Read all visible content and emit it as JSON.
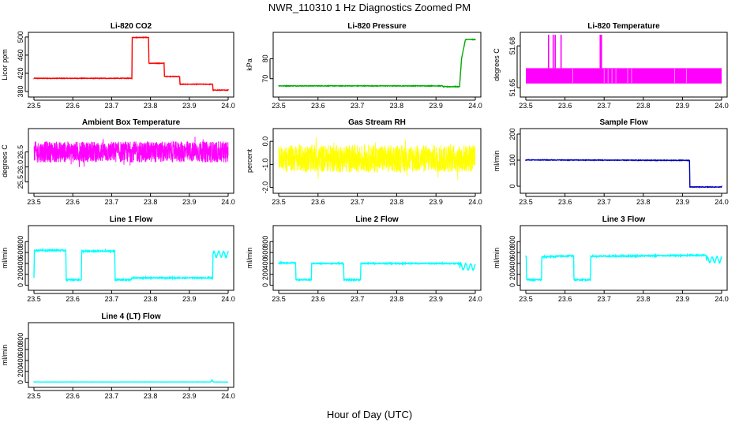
{
  "page": {
    "title": "NWR_110310  1 Hz Diagnostics Zoomed PM",
    "xlabel": "Hour of Day (UTC)"
  },
  "chart_data": [
    {
      "type": "line",
      "title": "Li-820 CO2",
      "ylabel": "Licor ppm",
      "color": "#ff0000",
      "xlim": [
        23.5,
        24.0
      ],
      "ylim": [
        373,
        505
      ],
      "x_ticks": [
        "23.5",
        "23.6",
        "23.7",
        "23.8",
        "23.9",
        "24.0"
      ],
      "y_ticks": [
        380,
        420,
        460,
        500
      ],
      "noise": 0.6,
      "series": [
        {
          "x": [
            23.5,
            23.752,
            23.753,
            23.795,
            23.796,
            23.835,
            23.836,
            23.875,
            23.876,
            23.96,
            23.961,
            24.0
          ],
          "y": [
            409,
            409,
            499,
            499,
            442,
            442,
            413,
            413,
            396,
            396,
            383,
            383
          ]
        }
      ]
    },
    {
      "type": "line",
      "title": "Li-820 Pressure",
      "ylabel": "kPa",
      "color": "#00aa00",
      "xlim": [
        23.5,
        24.0
      ],
      "ylim": [
        62,
        92
      ],
      "x_ticks": [
        "23.5",
        "23.6",
        "23.7",
        "23.8",
        "23.9",
        "24.0"
      ],
      "y_ticks": [
        70,
        80
      ],
      "noise": 0.15,
      "series": [
        {
          "x": [
            23.5,
            23.917,
            23.918,
            23.96,
            23.965,
            23.975,
            24.0
          ],
          "y": [
            66.4,
            66.4,
            66.0,
            66.0,
            80.0,
            89.6,
            89.6
          ]
        }
      ]
    },
    {
      "type": "line",
      "title": "Li-820 Temperature",
      "ylabel": "degrees C",
      "color": "#ff00ff",
      "xlim": [
        23.5,
        24.0
      ],
      "ylim": [
        51.645,
        51.688
      ],
      "x_ticks": [
        "23.5",
        "23.6",
        "23.7",
        "23.8",
        "23.9",
        "24.0"
      ],
      "y_ticks": [
        "51.65",
        "51.68"
      ],
      "band": [
        51.653,
        51.664
      ],
      "spikes": [
        23.558,
        23.57,
        23.575,
        23.59,
        23.69,
        23.693
      ],
      "spike_top": 51.688,
      "series": []
    },
    {
      "type": "line",
      "title": "Ambient Box Temperature",
      "ylabel": "degrees C",
      "color": "#ff00ff",
      "xlim": [
        23.5,
        24.0
      ],
      "ylim": [
        25.2,
        27.2
      ],
      "x_ticks": [
        "23.5",
        "23.6",
        "23.7",
        "23.8",
        "23.9",
        "24.0"
      ],
      "y_ticks": [
        "25.5",
        "26.0",
        "26.5"
      ],
      "noise_center": 26.5,
      "noise_amp": 0.35,
      "series": []
    },
    {
      "type": "line",
      "title": "Gas Stream RH",
      "ylabel": "percent",
      "color": "#ffff00",
      "xlim": [
        23.5,
        24.0
      ],
      "ylim": [
        -2.15,
        0.45
      ],
      "x_ticks": [
        "23.5",
        "23.6",
        "23.7",
        "23.8",
        "23.9",
        "24.0"
      ],
      "y_ticks": [
        "-2.0",
        "-1.0",
        "0.0"
      ],
      "noise_center": -0.75,
      "noise_amp": 0.6,
      "series": []
    },
    {
      "type": "line",
      "title": "Sample Flow",
      "ylabel": "ml/min",
      "color": "#0000bb",
      "xlim": [
        23.5,
        24.0
      ],
      "ylim": [
        -18,
        212
      ],
      "x_ticks": [
        "23.5",
        "23.6",
        "23.7",
        "23.8",
        "23.9",
        "24.0"
      ],
      "y_ticks": [
        0,
        100,
        200
      ],
      "noise": 1.2,
      "series": [
        {
          "x": [
            23.5,
            23.918,
            23.919,
            24.0
          ],
          "y": [
            101,
            99,
            -3,
            -3
          ]
        }
      ]
    },
    {
      "type": "line",
      "title": "Line 1 Flow",
      "ylabel": "ml/min",
      "color": "#00ffff",
      "xlim": [
        23.5,
        24.0
      ],
      "ylim": [
        -50,
        1050
      ],
      "x_ticks": [
        "23.5",
        "23.6",
        "23.7",
        "23.8",
        "23.9",
        "24.0"
      ],
      "y_ticks": [
        0,
        200,
        400,
        600,
        800
      ],
      "noise": 12,
      "wiggle": 23.96,
      "series": [
        {
          "x": [
            23.5,
            23.501,
            23.582,
            23.583,
            23.622,
            23.623,
            23.708,
            23.709,
            23.75,
            23.751,
            23.96,
            23.961,
            24.0
          ],
          "y": [
            130,
            640,
            640,
            100,
            100,
            625,
            625,
            100,
            100,
            135,
            135,
            570,
            570
          ]
        }
      ]
    },
    {
      "type": "line",
      "title": "Line 2 Flow",
      "ylabel": "ml/min",
      "color": "#00ffff",
      "xlim": [
        23.5,
        24.0
      ],
      "ylim": [
        -50,
        1050
      ],
      "x_ticks": [
        "23.5",
        "23.6",
        "23.7",
        "23.8",
        "23.9",
        "24.0"
      ],
      "y_ticks": [
        0,
        200,
        400,
        600,
        800
      ],
      "noise": 10,
      "wiggle": 23.96,
      "series": [
        {
          "x": [
            23.5,
            23.543,
            23.544,
            23.583,
            23.584,
            23.665,
            23.666,
            23.708,
            23.709,
            23.96,
            23.961,
            24.0
          ],
          "y": [
            410,
            410,
            100,
            100,
            400,
            400,
            100,
            100,
            400,
            400,
            340,
            340
          ]
        }
      ]
    },
    {
      "type": "line",
      "title": "Line 3 Flow",
      "ylabel": "ml/min",
      "color": "#00ffff",
      "xlim": [
        23.5,
        24.0
      ],
      "ylim": [
        -50,
        1050
      ],
      "x_ticks": [
        "23.5",
        "23.6",
        "23.7",
        "23.8",
        "23.9",
        "24.0"
      ],
      "y_ticks": [
        0,
        200,
        400,
        600,
        800
      ],
      "noise": 12,
      "wiggle": 23.96,
      "series": [
        {
          "x": [
            23.5,
            23.501,
            23.502,
            23.54,
            23.541,
            23.622,
            23.623,
            23.665,
            23.666,
            23.96,
            23.961,
            24.0
          ],
          "y": [
            520,
            520,
            100,
            100,
            520,
            540,
            100,
            100,
            530,
            550,
            470,
            470
          ]
        }
      ]
    },
    {
      "type": "line",
      "title": "Line 4 (LT) Flow",
      "ylabel": "ml/min",
      "color": "#00ffff",
      "xlim": [
        23.5,
        24.0
      ],
      "ylim": [
        -50,
        1050
      ],
      "x_ticks": [
        "23.5",
        "23.6",
        "23.7",
        "23.8",
        "23.9",
        "24.0"
      ],
      "y_ticks": [
        0,
        200,
        400,
        600,
        800
      ],
      "noise": 2,
      "series": [
        {
          "x": [
            23.5,
            23.955,
            23.958,
            23.962,
            24.0
          ],
          "y": [
            5,
            5,
            40,
            5,
            5
          ]
        }
      ]
    }
  ]
}
